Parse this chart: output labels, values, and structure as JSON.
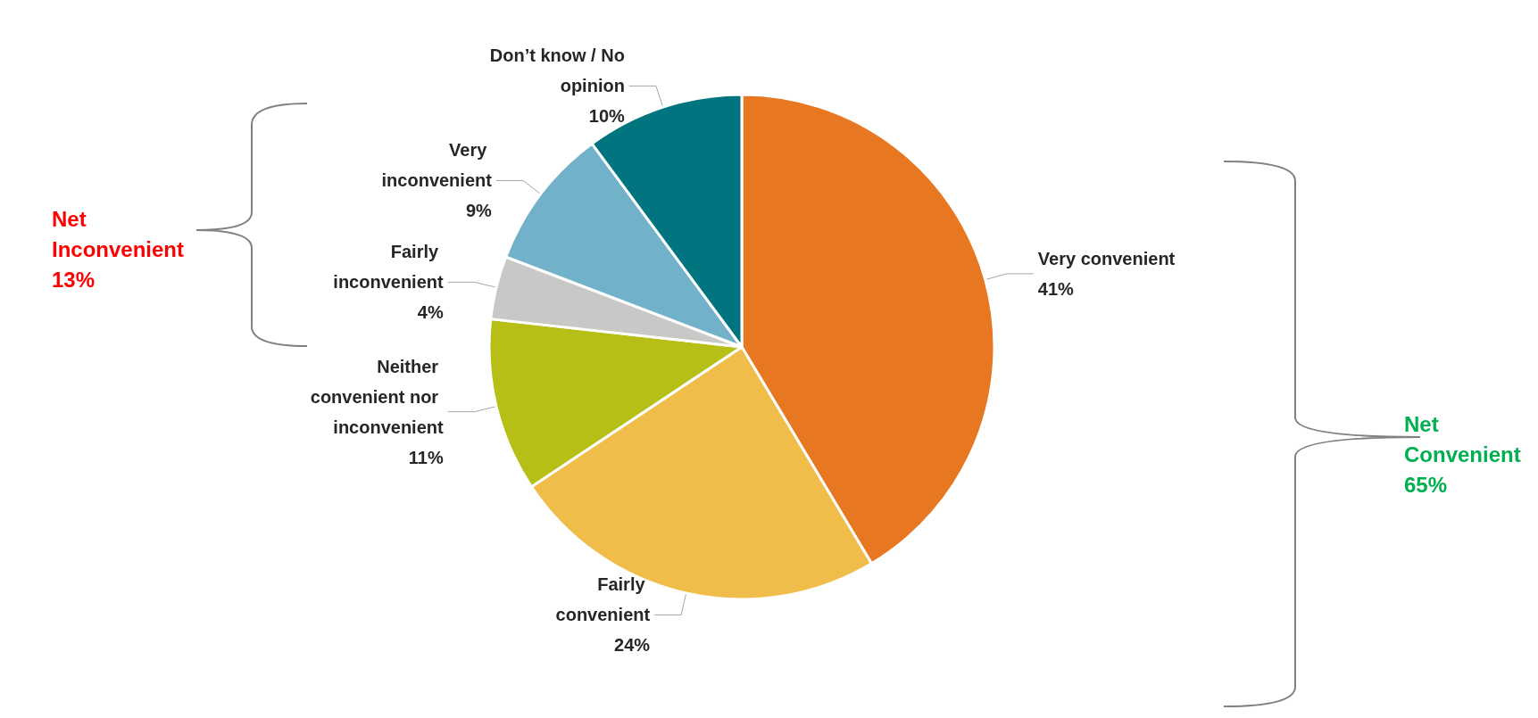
{
  "chart_data": {
    "type": "pie",
    "categories": [
      "Very convenient",
      "Fairly convenient",
      "Neither convenient nor inconvenient",
      "Fairly inconvenient",
      "Very inconvenient",
      "Don’t know / No opinion"
    ],
    "values": [
      41,
      24,
      11,
      4,
      9,
      10
    ],
    "value_labels": [
      "41%",
      "24%",
      "11%",
      "4%",
      "9%",
      "10%"
    ],
    "colors": [
      "#e87722",
      "#f0bc4a",
      "#b5bf15",
      "#c8c8c6",
      "#72b1ca",
      "#00757f"
    ],
    "annotations": [
      "Net Inconvenient 13%",
      "Net Convenient 65%"
    ],
    "legend": false
  }
}
